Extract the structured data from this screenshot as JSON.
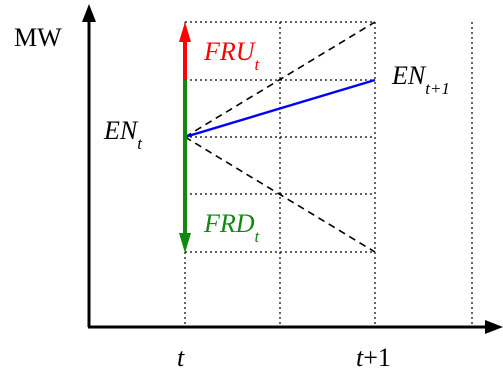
{
  "axes": {
    "y_label": "MW",
    "x_tick_t": "t",
    "x_tick_t_plus_1_base": "t",
    "x_tick_t_plus_1_rest": "+1"
  },
  "labels": {
    "en_t": {
      "main": "EN",
      "sub": "t"
    },
    "en_t1": {
      "main": "EN",
      "sub": "t+1"
    },
    "fru": {
      "main": "FRU",
      "sub": "t",
      "color": "#ff0000"
    },
    "frd": {
      "main": "FRD",
      "sub": "t",
      "color": "#118811"
    }
  },
  "colors": {
    "axis": "#000000",
    "grid": "#000000",
    "up_arrow": "#ff0000",
    "down_arrow": "#118811",
    "trajectory": "#0000ff",
    "envelope": "#000000"
  }
}
